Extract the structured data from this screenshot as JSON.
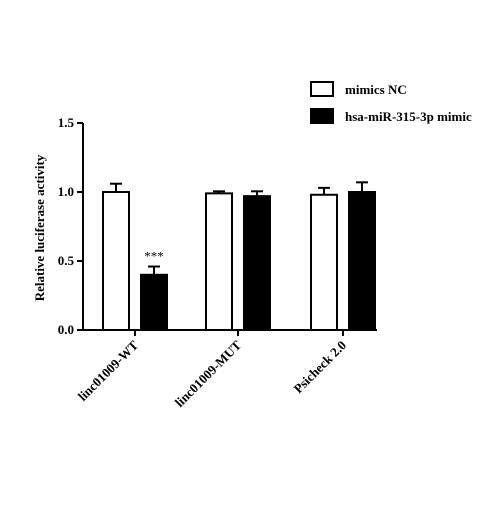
{
  "chart_data": {
    "type": "bar",
    "title": "",
    "xlabel": "",
    "ylabel": "Relative luciferase activity",
    "ylim": [
      0,
      1.5
    ],
    "yticks": [
      "0.0",
      "0.5",
      "1.0",
      "1.5"
    ],
    "categories": [
      "linc01009-WT",
      "linc01009-MUT",
      "Psicheck 2.0"
    ],
    "series": [
      {
        "name": "mimics NC",
        "color": "#ffffff",
        "values": [
          1.0,
          0.99,
          0.98
        ],
        "errors": [
          0.06,
          0.015,
          0.05
        ]
      },
      {
        "name": "hsa-miR-315-3p mimic",
        "color": "#000000",
        "values": [
          0.4,
          0.97,
          1.0
        ],
        "errors": [
          0.06,
          0.035,
          0.07
        ]
      }
    ],
    "annotations": [
      {
        "category": 0,
        "series": 1,
        "text": "***"
      }
    ],
    "legend_position": "top-right",
    "grid": false
  }
}
